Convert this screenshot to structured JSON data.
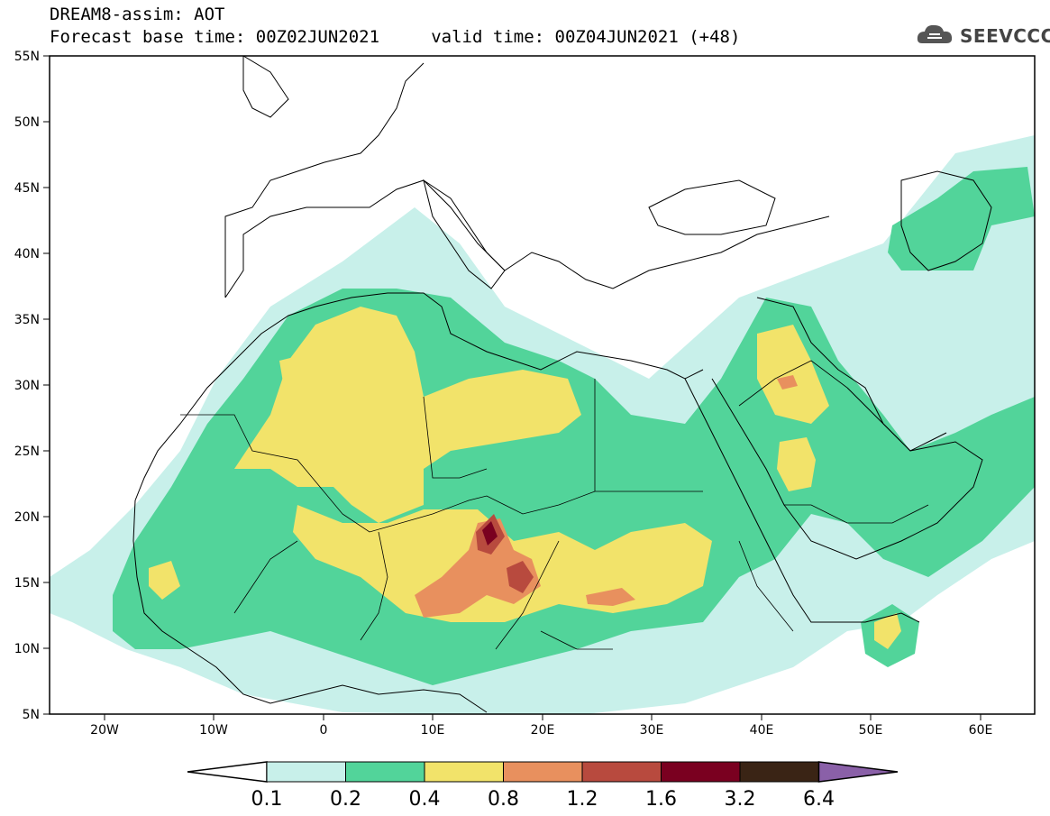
{
  "header": {
    "title_line1": "DREAM8-assim: AOT",
    "title_line2": "Forecast base time: 00Z02JUN2021     valid time: 00Z04JUN2021 (+48)"
  },
  "logo": {
    "text": "SEEVCCC",
    "icon": "cloud-icon"
  },
  "map": {
    "lat_labels": [
      "55N",
      "50N",
      "45N",
      "40N",
      "35N",
      "30N",
      "25N",
      "20N",
      "15N",
      "10N",
      "5N"
    ],
    "lon_labels": [
      "20W",
      "10W",
      "0",
      "10E",
      "20E",
      "30E",
      "40E",
      "50E",
      "60E"
    ],
    "lat_range": [
      5,
      55
    ],
    "lon_range": [
      -25,
      65
    ]
  },
  "colorbar": {
    "levels": [
      "0.1",
      "0.2",
      "0.4",
      "0.8",
      "1.2",
      "1.6",
      "3.2",
      "6.4"
    ],
    "colors": [
      "#c8f0ea",
      "#52d49a",
      "#f2e36a",
      "#e8905e",
      "#b84a3e",
      "#7a0020",
      "#3a2415",
      "#8a60a8"
    ],
    "under_color": "#ffffff"
  }
}
